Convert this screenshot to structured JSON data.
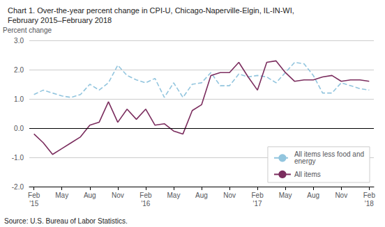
{
  "chart_data": {
    "type": "line",
    "title": "Chart 1. Over-the-year percent change in CPI-U, Chicago-Naperville-Elgin, IL-IN-WI,",
    "subtitle": "February 2015–February 2018",
    "ylabel": "Percent change",
    "annotations": [
      "Source: U.S. Bureau of Labor Statistics."
    ],
    "categories": [
      "Feb\n'15",
      null,
      null,
      "May",
      null,
      null,
      "Aug",
      null,
      null,
      "Nov",
      null,
      null,
      "Feb\n'16",
      null,
      null,
      "May",
      null,
      null,
      "Aug",
      null,
      null,
      "Nov",
      null,
      null,
      "Feb\n'17",
      null,
      null,
      "May",
      null,
      null,
      "Aug",
      null,
      null,
      "Nov",
      null,
      null,
      "Feb\n'18"
    ],
    "series": [
      {
        "name": "All items less food and\nenergy",
        "color": "#92C5DE",
        "line_style": "dashed",
        "values": [
          1.15,
          1.3,
          1.2,
          1.1,
          1.05,
          1.15,
          1.5,
          1.3,
          1.55,
          2.15,
          1.8,
          1.65,
          1.55,
          1.7,
          1.05,
          1.55,
          1.05,
          1.5,
          1.55,
          1.9,
          1.45,
          1.45,
          1.85,
          1.75,
          1.8,
          1.75,
          1.55,
          1.9,
          2.25,
          2.2,
          1.8,
          1.2,
          1.2,
          1.55,
          1.45,
          1.35,
          1.3
        ]
      },
      {
        "name": "All items",
        "color": "#7B2D5E",
        "line_style": "solid",
        "values": [
          -0.2,
          -0.5,
          -0.9,
          -0.7,
          -0.5,
          -0.3,
          0.1,
          0.2,
          0.9,
          0.2,
          0.65,
          0.3,
          0.65,
          0.1,
          0.15,
          -0.1,
          -0.2,
          0.6,
          0.8,
          1.8,
          1.9,
          1.9,
          2.25,
          1.75,
          1.3,
          2.25,
          2.3,
          1.9,
          1.6,
          1.65,
          1.65,
          1.75,
          1.8,
          1.6,
          1.65,
          1.65,
          1.6
        ]
      }
    ],
    "ylim": [
      -2.0,
      3.0
    ],
    "yticks": [
      {
        "value": -2.0,
        "label": "-2.0"
      },
      {
        "value": -1.0,
        "label": "-1.0"
      },
      {
        "value": 0.0,
        "label": "0.0"
      },
      {
        "value": 1.0,
        "label": "1.0"
      },
      {
        "value": 2.0,
        "label": "2.0"
      },
      {
        "value": 3.0,
        "label": "3.0"
      }
    ],
    "grid": true,
    "legend": "lower right"
  }
}
